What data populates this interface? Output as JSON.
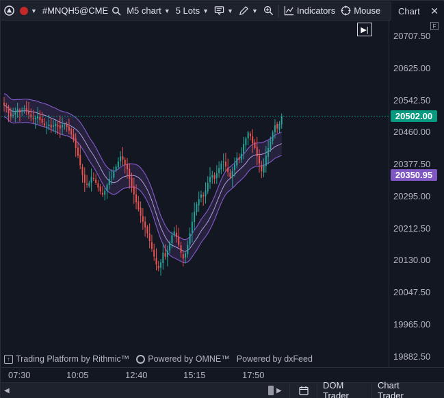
{
  "toolbar": {
    "symbol": "#MNQH5@CME",
    "timeframe": "M5 chart",
    "lots": "5 Lots",
    "indicators_label": "Indicators",
    "mouse_label": "Mouse",
    "tab_label": "Chart",
    "record_color": "#c62828"
  },
  "price_axis": {
    "labels": [
      "20707.50",
      "20625.00",
      "20542.50",
      "20460.00",
      "20377.50",
      "20295.00",
      "20212.50",
      "20130.00",
      "20047.50",
      "19965.00",
      "19882.50"
    ],
    "last_price": "20502.00",
    "last_price_color": "#089981",
    "indicator_price": "20350.95",
    "indicator_color": "#7e57c2"
  },
  "time_axis": {
    "labels": [
      "07:30",
      "10:05",
      "12:40",
      "15:15",
      "17:50"
    ]
  },
  "watermark": {
    "rithmic": "Trading Platform by Rithmic™",
    "omne": "Powered by OMNE™",
    "dxfeed": "Powered by dxFeed"
  },
  "bottombar": {
    "dom_trader": "DOM Trader",
    "chart_trader": "Chart Trader"
  },
  "chart_data": {
    "type": "candlestick",
    "symbol": "#MNQH5@CME",
    "interval": "M5",
    "x_ticks": [
      "07:30",
      "10:05",
      "12:40",
      "15:15",
      "17:50"
    ],
    "ylim": [
      19882.5,
      20707.5
    ],
    "last_price": 20502.0,
    "band_middle_last": 20350.95,
    "colors": {
      "up": "#26a69a",
      "down": "#ef5350",
      "band": "#7e57c2"
    },
    "close_path": [
      20530,
      20525,
      20510,
      20500,
      20505,
      20515,
      20520,
      20512,
      20518,
      20522,
      20515,
      20508,
      20500,
      20495,
      20498,
      20502,
      20492,
      20485,
      20478,
      20475,
      20480,
      20472,
      20478,
      20482,
      20475,
      20470,
      20478,
      20480,
      20474,
      20465,
      20455,
      20440,
      20420,
      20400,
      20375,
      20350,
      20330,
      20325,
      20330,
      20345,
      20340,
      20330,
      20318,
      20308,
      20300,
      20310,
      20325,
      20340,
      20345,
      20360,
      20372,
      20385,
      20398,
      20390,
      20378,
      20365,
      20340,
      20320,
      20300,
      20280,
      20262,
      20245,
      20230,
      20215,
      20200,
      20180,
      20160,
      20140,
      20120,
      20110,
      20125,
      20150,
      20140,
      20155,
      20175,
      20195,
      20205,
      20190,
      20170,
      20150,
      20135,
      20148,
      20170,
      20200,
      20230,
      20255,
      20275,
      20288,
      20300,
      20295,
      20310,
      20330,
      20345,
      20350,
      20340,
      20355,
      20368,
      20380,
      20385,
      20372,
      20358,
      20345,
      20360,
      20378,
      20395,
      20390,
      20405,
      20430,
      20445,
      20460,
      20450,
      20432,
      20420,
      20398,
      20380,
      20360,
      20375,
      20400,
      20420,
      20440,
      20460,
      20478,
      20470,
      20482,
      20502
    ]
  }
}
